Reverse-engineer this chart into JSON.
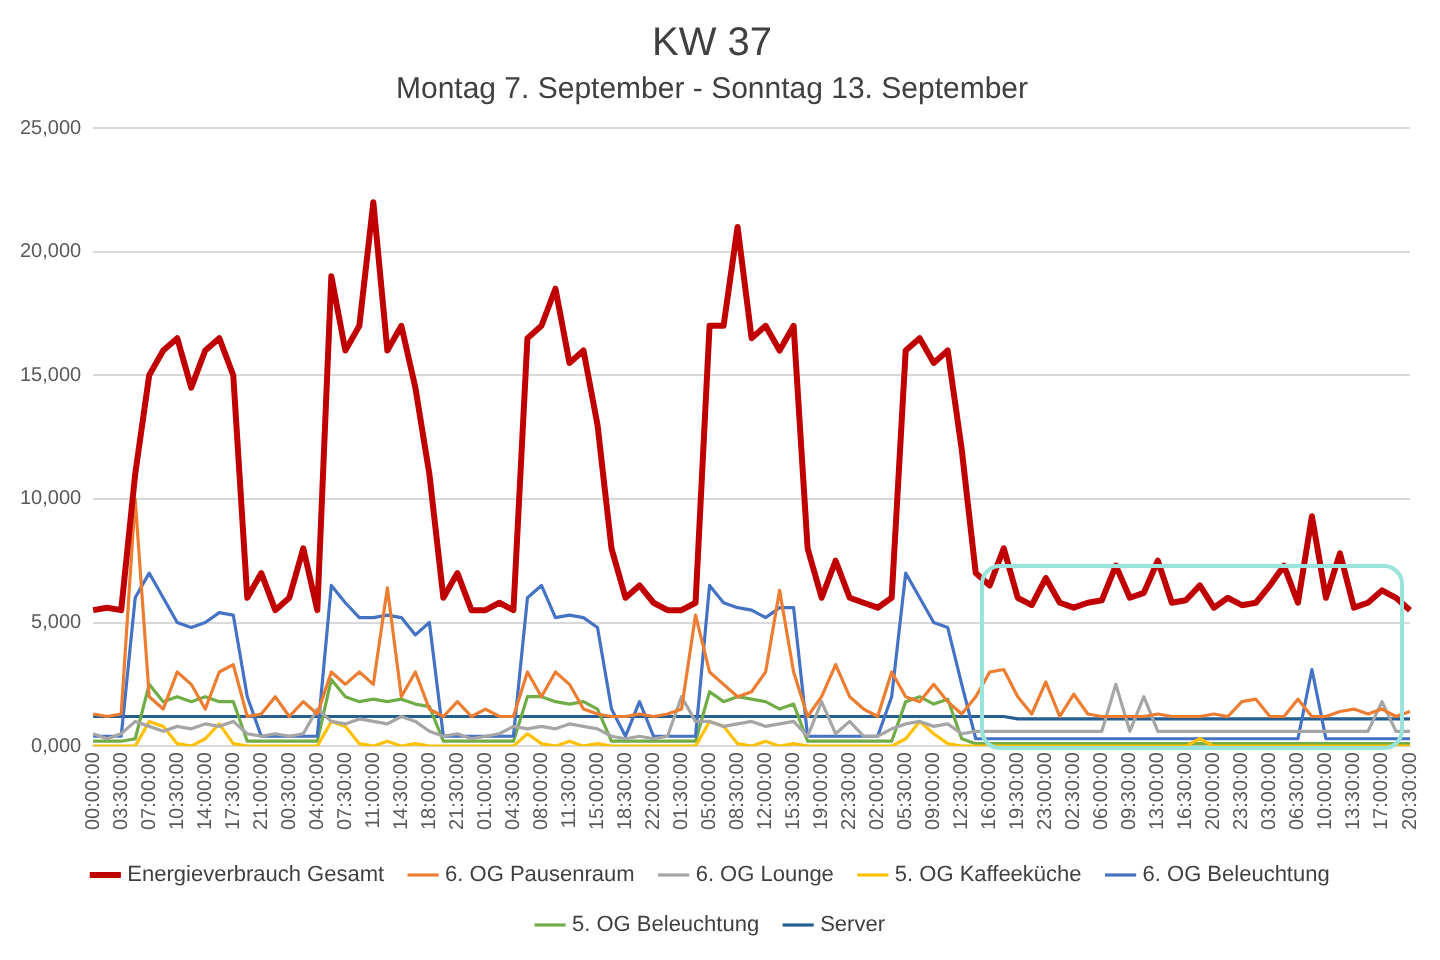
{
  "chart_data": {
    "type": "line",
    "title": "KW 37",
    "subtitle": "Montag 7. September - Sonntag 13. September",
    "categories": [
      "00:00:00",
      null,
      "03:30:00",
      null,
      "07:00:00",
      null,
      "10:30:00",
      null,
      "14:00:00",
      null,
      "17:30:00",
      null,
      "21:00:00",
      null,
      "00:30:00",
      null,
      "04:00:00",
      null,
      "07:30:00",
      null,
      "11:00:00",
      null,
      "14:30:00",
      null,
      "18:00:00",
      null,
      "21:30:00",
      null,
      "01:00:00",
      null,
      "04:30:00",
      null,
      "08:00:00",
      null,
      "11:30:00",
      null,
      "15:00:00",
      null,
      "18:30:00",
      null,
      "22:00:00",
      null,
      "01:30:00",
      null,
      "05:00:00",
      null,
      "08:30:00",
      null,
      "12:00:00",
      null,
      "15:30:00",
      null,
      "19:00:00",
      null,
      "22:30:00",
      null,
      "02:00:00",
      null,
      "05:30:00",
      null,
      "09:00:00",
      null,
      "12:30:00",
      null,
      "16:00:00",
      null,
      "19:30:00",
      null,
      "23:00:00",
      null,
      "02:30:00",
      null,
      "06:00:00",
      null,
      "09:30:00",
      null,
      "13:00:00",
      null,
      "16:30:00",
      null,
      "20:00:00",
      null,
      "23:30:00",
      null,
      "03:00:00",
      null,
      "06:30:00",
      null,
      "10:00:00",
      null,
      "13:30:00",
      null,
      "17:00:00",
      null,
      "20:30:00"
    ],
    "series": [
      {
        "name": "Energieverbrauch Gesamt",
        "color": "#c00000",
        "values": [
          5500,
          5600,
          5500,
          11000,
          15000,
          16000,
          16500,
          14500,
          16000,
          16500,
          15000,
          6000,
          7000,
          5500,
          6000,
          8000,
          5500,
          19000,
          16000,
          17000,
          22000,
          16000,
          17000,
          14500,
          11000,
          6000,
          7000,
          5500,
          5500,
          5800,
          5500,
          16500,
          17000,
          18500,
          15500,
          16000,
          13000,
          8000,
          6000,
          6500,
          5800,
          5500,
          5500,
          5800,
          17000,
          17000,
          21000,
          16500,
          17000,
          16000,
          17000,
          8000,
          6000,
          7500,
          6000,
          5800,
          5600,
          6000,
          16000,
          16500,
          15500,
          16000,
          12000,
          7000,
          6500,
          8000,
          6000,
          5700,
          6800,
          5800,
          5600,
          5800,
          5900,
          7300,
          6000,
          6200,
          7500,
          5800,
          5900,
          6500,
          5600,
          6000,
          5700,
          5800,
          6500,
          7300,
          5800,
          9300,
          6000,
          7800,
          5600,
          5800,
          6300,
          6000,
          5500
        ]
      },
      {
        "name": "6. OG Pausenraum",
        "color": "#ed7d31",
        "values": [
          1300,
          1200,
          1300,
          10000,
          2000,
          1500,
          3000,
          2500,
          1500,
          3000,
          3300,
          1200,
          1300,
          2000,
          1200,
          1800,
          1300,
          3000,
          2500,
          3000,
          2500,
          6400,
          2000,
          3000,
          1500,
          1200,
          1800,
          1200,
          1500,
          1200,
          1200,
          3000,
          2000,
          3000,
          2500,
          1500,
          1300,
          1200,
          1200,
          1300,
          1200,
          1300,
          1500,
          5300,
          3000,
          2500,
          2000,
          2200,
          3000,
          6300,
          3000,
          1200,
          2000,
          3300,
          2000,
          1500,
          1200,
          3000,
          2000,
          1800,
          2500,
          1800,
          1300,
          2000,
          3000,
          3100,
          2000,
          1300,
          2600,
          1200,
          2100,
          1300,
          1200,
          1200,
          1200,
          1200,
          1300,
          1200,
          1200,
          1200,
          1300,
          1200,
          1800,
          1900,
          1200,
          1200,
          1900,
          1200,
          1200,
          1400,
          1500,
          1300,
          1500,
          1200,
          1400
        ]
      },
      {
        "name": "6. OG Lounge",
        "color": "#a5a5a5",
        "values": [
          500,
          300,
          500,
          1000,
          800,
          600,
          800,
          700,
          900,
          800,
          1000,
          500,
          400,
          500,
          400,
          500,
          1500,
          1000,
          900,
          1100,
          1000,
          900,
          1200,
          1000,
          600,
          400,
          500,
          300,
          400,
          500,
          800,
          700,
          800,
          700,
          900,
          800,
          700,
          400,
          300,
          400,
          300,
          400,
          2000,
          1000,
          1000,
          800,
          900,
          1000,
          800,
          900,
          1000,
          400,
          1800,
          500,
          1000,
          400,
          400,
          700,
          900,
          1000,
          800,
          900,
          500,
          600,
          600,
          600,
          600,
          600,
          600,
          600,
          600,
          600,
          600,
          2500,
          600,
          2000,
          600,
          600,
          600,
          600,
          600,
          600,
          600,
          600,
          600,
          600,
          600,
          600,
          600,
          600,
          600,
          600,
          1800,
          600,
          600
        ]
      },
      {
        "name": "5. OG Kaffeeküche",
        "color": "#ffc000",
        "values": [
          0,
          0,
          0,
          0,
          1000,
          800,
          100,
          0,
          300,
          900,
          100,
          0,
          0,
          0,
          0,
          0,
          0,
          1000,
          800,
          100,
          0,
          200,
          0,
          100,
          0,
          0,
          0,
          0,
          0,
          0,
          0,
          500,
          100,
          0,
          200,
          0,
          100,
          0,
          0,
          0,
          0,
          0,
          0,
          0,
          1000,
          800,
          100,
          0,
          200,
          0,
          100,
          0,
          0,
          0,
          0,
          0,
          0,
          0,
          300,
          1000,
          500,
          100,
          0,
          0,
          0,
          0,
          0,
          0,
          0,
          0,
          0,
          0,
          0,
          0,
          0,
          0,
          0,
          0,
          0,
          300,
          0,
          0,
          0,
          0,
          0,
          0,
          0,
          0,
          0,
          0,
          0,
          0,
          0,
          0,
          0
        ]
      },
      {
        "name": "6. OG Beleuchtung",
        "color": "#4472c4",
        "values": [
          400,
          400,
          400,
          6000,
          7000,
          6000,
          5000,
          4800,
          5000,
          5400,
          5300,
          2000,
          400,
          400,
          400,
          400,
          400,
          6500,
          5800,
          5200,
          5200,
          5300,
          5200,
          4500,
          5000,
          400,
          400,
          400,
          400,
          400,
          400,
          6000,
          6500,
          5200,
          5300,
          5200,
          4800,
          1500,
          400,
          1800,
          400,
          400,
          400,
          400,
          6500,
          5800,
          5600,
          5500,
          5200,
          5600,
          5600,
          400,
          400,
          400,
          400,
          400,
          400,
          2000,
          7000,
          6000,
          5000,
          4800,
          2500,
          300,
          300,
          300,
          300,
          300,
          300,
          300,
          300,
          300,
          300,
          300,
          300,
          300,
          300,
          300,
          300,
          300,
          300,
          300,
          300,
          300,
          300,
          300,
          300,
          3100,
          300,
          300,
          300,
          300,
          300,
          300,
          300
        ]
      },
      {
        "name": "5. OG Beleuchtung",
        "color": "#70ad47",
        "values": [
          200,
          200,
          200,
          300,
          2500,
          1800,
          2000,
          1800,
          2000,
          1800,
          1800,
          200,
          200,
          200,
          200,
          200,
          200,
          2700,
          2000,
          1800,
          1900,
          1800,
          1900,
          1700,
          1600,
          200,
          200,
          200,
          200,
          200,
          200,
          2000,
          2000,
          1800,
          1700,
          1800,
          1500,
          200,
          200,
          200,
          200,
          200,
          200,
          200,
          2200,
          1800,
          2000,
          1900,
          1800,
          1500,
          1700,
          200,
          200,
          200,
          200,
          200,
          200,
          200,
          1800,
          2000,
          1700,
          1900,
          300,
          100,
          100,
          100,
          100,
          100,
          100,
          100,
          100,
          100,
          100,
          100,
          100,
          100,
          100,
          100,
          100,
          100,
          100,
          100,
          100,
          100,
          100,
          100,
          100,
          100,
          100,
          100,
          100,
          100,
          100,
          100,
          100
        ]
      },
      {
        "name": "Server",
        "color": "#255e91",
        "values": [
          1200,
          1200,
          1200,
          1200,
          1200,
          1200,
          1200,
          1200,
          1200,
          1200,
          1200,
          1200,
          1200,
          1200,
          1200,
          1200,
          1200,
          1200,
          1200,
          1200,
          1200,
          1200,
          1200,
          1200,
          1200,
          1200,
          1200,
          1200,
          1200,
          1200,
          1200,
          1200,
          1200,
          1200,
          1200,
          1200,
          1200,
          1200,
          1200,
          1200,
          1200,
          1200,
          1200,
          1200,
          1200,
          1200,
          1200,
          1200,
          1200,
          1200,
          1200,
          1200,
          1200,
          1200,
          1200,
          1200,
          1200,
          1200,
          1200,
          1200,
          1200,
          1200,
          1200,
          1200,
          1200,
          1200,
          1100,
          1100,
          1100,
          1100,
          1100,
          1100,
          1100,
          1100,
          1100,
          1100,
          1100,
          1100,
          1100,
          1100,
          1100,
          1100,
          1100,
          1100,
          1100,
          1100,
          1100,
          1100,
          1100,
          1100,
          1100,
          1100,
          1100,
          1100,
          1100
        ]
      }
    ],
    "ylim": [
      0,
      25000
    ],
    "yticks": [
      {
        "value": 0,
        "label": "0,000"
      },
      {
        "value": 5000,
        "label": "5,000"
      },
      {
        "value": 10000,
        "label": "10,000"
      },
      {
        "value": 15000,
        "label": "15,000"
      },
      {
        "value": 20000,
        "label": "20,000"
      },
      {
        "value": 25000,
        "label": "25,000"
      }
    ],
    "grid": "y",
    "legend": "bottom",
    "marker": "none",
    "line_style": "solid"
  }
}
